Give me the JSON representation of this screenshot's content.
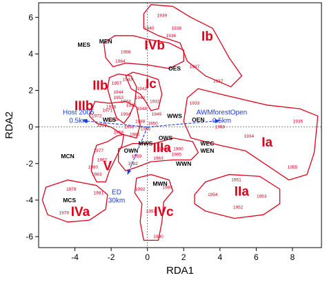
{
  "chart_data": {
    "type": "scatter",
    "title": "",
    "xlabel": "RDA1",
    "ylabel": "RDA2",
    "xlim": [
      -6,
      9.6
    ],
    "ylim": [
      -6.6,
      6.8
    ],
    "x_ticks": [
      -4,
      -2,
      0,
      2,
      4,
      6,
      8
    ],
    "y_ticks": [
      -6,
      -4,
      -2,
      0,
      2,
      4,
      6
    ],
    "grid": false,
    "zero_lines": true,
    "colors": {
      "year_labels": "#d6001c",
      "group_outlines": "#e0001a",
      "group_labels": "#e0001a",
      "site_labels": "#000000",
      "vectors": "#1a3adc",
      "axes": "#000000"
    },
    "site_points": [
      {
        "label": "MES",
        "x": -3.5,
        "y": 4.5
      },
      {
        "label": "MEN",
        "x": -2.3,
        "y": 4.7
      },
      {
        "label": "OES",
        "x": 1.5,
        "y": 3.2
      },
      {
        "label": "WWS",
        "x": 1.5,
        "y": 0.6
      },
      {
        "label": "WES",
        "x": -2.1,
        "y": 0.4
      },
      {
        "label": "OEN",
        "x": 2.8,
        "y": 0.4
      },
      {
        "label": "OWS",
        "x": 1.0,
        "y": -0.6
      },
      {
        "label": "WEC",
        "x": 3.3,
        "y": -0.9
      },
      {
        "label": "WEN",
        "x": 3.3,
        "y": -1.3
      },
      {
        "label": "WWN",
        "x": 2.0,
        "y": -2.0
      },
      {
        "label": "MCN",
        "x": -4.4,
        "y": -1.6
      },
      {
        "label": "OWN",
        "x": -0.9,
        "y": -1.3
      },
      {
        "label": "MWS",
        "x": -0.1,
        "y": -0.9
      },
      {
        "label": "MCS",
        "x": -4.3,
        "y": -4.0
      },
      {
        "label": "MWN",
        "x": 0.7,
        "y": -3.1
      }
    ],
    "year_points": [
      {
        "label": "1939",
        "x": 0.8,
        "y": 6.1
      },
      {
        "label": "1940",
        "x": 0.1,
        "y": 5.4
      },
      {
        "label": "1938",
        "x": 1.6,
        "y": 5.4
      },
      {
        "label": "1936",
        "x": 1.3,
        "y": 5.0
      },
      {
        "label": "1986",
        "x": -1.2,
        "y": 4.1
      },
      {
        "label": "1984",
        "x": -1.5,
        "y": 3.6
      },
      {
        "label": "1987",
        "x": 2.6,
        "y": 3.3
      },
      {
        "label": "1937",
        "x": 3.9,
        "y": 2.5
      },
      {
        "label": "1943",
        "x": -1.1,
        "y": 2.6
      },
      {
        "label": "1957",
        "x": -1.7,
        "y": 2.4
      },
      {
        "label": "1941",
        "x": -0.3,
        "y": 2.1
      },
      {
        "label": "1944",
        "x": -1.6,
        "y": 1.9
      },
      {
        "label": "1953",
        "x": -1.6,
        "y": 1.6
      },
      {
        "label": "1942",
        "x": -0.4,
        "y": 1.6
      },
      {
        "label": "1932",
        "x": 0.4,
        "y": 1.4
      },
      {
        "label": "1974",
        "x": -1.2,
        "y": 1.4
      },
      {
        "label": "1976",
        "x": -2.0,
        "y": 1.1
      },
      {
        "label": "1930",
        "x": -0.9,
        "y": 1.2
      },
      {
        "label": "1933",
        "x": 2.6,
        "y": 1.3
      },
      {
        "label": "1971",
        "x": -2.2,
        "y": 0.9
      },
      {
        "label": "1948",
        "x": -0.3,
        "y": 1.0
      },
      {
        "label": "1972",
        "x": -2.8,
        "y": 0.6
      },
      {
        "label": "1949",
        "x": 0.5,
        "y": 0.7
      },
      {
        "label": "1994",
        "x": -1.2,
        "y": 0.7
      },
      {
        "label": "1970",
        "x": -1.9,
        "y": 0.4
      },
      {
        "label": "1950",
        "x": 0.3,
        "y": 0.2
      },
      {
        "label": "1979",
        "x": -2.5,
        "y": 0.1
      },
      {
        "label": "1988",
        "x": -0.4,
        "y": 0.3
      },
      {
        "label": "1999",
        "x": -1.0,
        "y": 0.0
      },
      {
        "label": "1946",
        "x": -0.1,
        "y": -0.1
      },
      {
        "label": "1958",
        "x": -1.6,
        "y": -0.3
      },
      {
        "label": "1985",
        "x": -0.7,
        "y": -0.4
      },
      {
        "label": "1935",
        "x": 8.3,
        "y": 0.3
      },
      {
        "label": "1968",
        "x": 4.0,
        "y": 0.0
      },
      {
        "label": "1934",
        "x": 5.6,
        "y": -0.5
      },
      {
        "label": "1955",
        "x": 8.0,
        "y": -2.2
      },
      {
        "label": "1977",
        "x": -2.7,
        "y": -1.3
      },
      {
        "label": "1964",
        "x": 0.9,
        "y": -1.2
      },
      {
        "label": "1960",
        "x": 1.7,
        "y": -1.2
      },
      {
        "label": "1965",
        "x": 1.6,
        "y": -1.5
      },
      {
        "label": "1959",
        "x": -0.6,
        "y": -1.6
      },
      {
        "label": "1963",
        "x": 0.6,
        "y": -1.7
      },
      {
        "label": "1962",
        "x": -2.5,
        "y": -1.8
      },
      {
        "label": "1982",
        "x": -0.8,
        "y": -2.0
      },
      {
        "label": "1980",
        "x": -3.0,
        "y": -2.2
      },
      {
        "label": "1983",
        "x": -2.8,
        "y": -2.6
      },
      {
        "label": "1978",
        "x": -4.2,
        "y": -3.4
      },
      {
        "label": "1981",
        "x": -2.7,
        "y": -3.6
      },
      {
        "label": "1979",
        "x": -4.6,
        "y": -4.7
      },
      {
        "label": "1992",
        "x": -0.4,
        "y": -3.4
      },
      {
        "label": "1989",
        "x": 1.1,
        "y": -3.3
      },
      {
        "label": "1951",
        "x": 4.9,
        "y": -2.9
      },
      {
        "label": "1954",
        "x": 3.6,
        "y": -3.7
      },
      {
        "label": "1953",
        "x": 6.3,
        "y": -3.8
      },
      {
        "label": "1952",
        "x": 5.0,
        "y": -4.4
      },
      {
        "label": "1991",
        "x": 0.2,
        "y": -4.6
      },
      {
        "label": "1990",
        "x": 0.6,
        "y": -6.0
      }
    ],
    "group_labels": [
      {
        "label": "Ib",
        "x": 3.3,
        "y": 5.0
      },
      {
        "label": "IVb",
        "x": 0.4,
        "y": 4.5
      },
      {
        "label": "Ic",
        "x": 0.2,
        "y": 2.4
      },
      {
        "label": "IIb",
        "x": -2.6,
        "y": 2.3
      },
      {
        "label": "IIIb",
        "x": -3.5,
        "y": 1.2
      },
      {
        "label": "Ia",
        "x": 6.6,
        "y": -0.8
      },
      {
        "label": "IIIa",
        "x": 0.8,
        "y": -1.1
      },
      {
        "label": "V",
        "x": -2.2,
        "y": -2.1
      },
      {
        "label": "IVa",
        "x": -3.7,
        "y": -4.6
      },
      {
        "label": "IVc",
        "x": 0.9,
        "y": -4.6
      },
      {
        "label": "IIa",
        "x": 5.2,
        "y": -3.5
      }
    ],
    "group_outlines": [
      [
        [
          -0.2,
          6.2
        ],
        [
          0.2,
          6.7
        ],
        [
          1.4,
          6.6
        ],
        [
          2.4,
          6.0
        ],
        [
          3.6,
          5.4
        ],
        [
          4.5,
          3.8
        ],
        [
          5.2,
          2.8
        ],
        [
          4.6,
          2.2
        ],
        [
          3.2,
          2.8
        ],
        [
          2.2,
          3.6
        ],
        [
          1.8,
          4.6
        ],
        [
          0.6,
          5.0
        ],
        [
          -0.2,
          5.4
        ]
      ],
      [
        [
          -2.4,
          4.6
        ],
        [
          -1.8,
          5.0
        ],
        [
          -0.8,
          5.0
        ],
        [
          0.0,
          4.8
        ],
        [
          1.2,
          4.6
        ],
        [
          2.0,
          4.2
        ],
        [
          2.0,
          3.6
        ],
        [
          1.2,
          3.2
        ],
        [
          0.0,
          3.4
        ],
        [
          -1.2,
          3.5
        ],
        [
          -1.9,
          3.3
        ],
        [
          -2.3,
          3.8
        ]
      ],
      [
        [
          -1.2,
          2.8
        ],
        [
          -0.8,
          3.0
        ],
        [
          0.0,
          2.8
        ],
        [
          0.6,
          2.6
        ],
        [
          0.8,
          1.8
        ],
        [
          0.6,
          1.0
        ],
        [
          0.2,
          0.9
        ],
        [
          -0.1,
          1.4
        ],
        [
          -0.4,
          1.8
        ],
        [
          -0.9,
          2.1
        ]
      ],
      [
        [
          -2.1,
          2.7
        ],
        [
          -1.6,
          2.9
        ],
        [
          -0.9,
          2.8
        ],
        [
          -0.6,
          2.2
        ],
        [
          -0.7,
          1.3
        ],
        [
          -1.0,
          0.6
        ],
        [
          -1.3,
          0.2
        ],
        [
          -1.7,
          0.5
        ],
        [
          -2.0,
          1.4
        ],
        [
          -2.2,
          2.1
        ]
      ],
      [
        [
          -2.9,
          1.4
        ],
        [
          -2.1,
          1.3
        ],
        [
          -1.2,
          1.4
        ],
        [
          -0.6,
          1.1
        ],
        [
          -0.4,
          0.1
        ],
        [
          -0.6,
          -0.6
        ],
        [
          -1.4,
          -0.4
        ],
        [
          -2.0,
          0.0
        ],
        [
          -2.8,
          0.2
        ],
        [
          -3.2,
          0.6
        ]
      ],
      [
        [
          2.2,
          1.6
        ],
        [
          2.8,
          2.1
        ],
        [
          4.0,
          1.8
        ],
        [
          6.6,
          1.2
        ],
        [
          8.4,
          1.0
        ],
        [
          9.4,
          0.6
        ],
        [
          9.2,
          -1.4
        ],
        [
          8.8,
          -2.6
        ],
        [
          7.8,
          -2.9
        ],
        [
          6.6,
          -2.1
        ],
        [
          5.4,
          -1.3
        ],
        [
          4.0,
          -1.0
        ],
        [
          2.4,
          -0.6
        ],
        [
          2.0,
          0.3
        ]
      ],
      [
        [
          -1.6,
          -1.2
        ],
        [
          -0.8,
          -0.9
        ],
        [
          0.4,
          -0.9
        ],
        [
          1.4,
          -0.6
        ],
        [
          2.5,
          -0.8
        ],
        [
          2.8,
          -1.4
        ],
        [
          2.4,
          -1.8
        ],
        [
          1.4,
          -1.8
        ],
        [
          0.2,
          -1.9
        ],
        [
          -0.6,
          -2.2
        ],
        [
          -1.2,
          -2.4
        ],
        [
          -1.6,
          -1.9
        ]
      ],
      [
        [
          -2.2,
          -0.8
        ],
        [
          -2.8,
          -1.0
        ],
        [
          -3.0,
          -1.6
        ],
        [
          -3.1,
          -2.4
        ],
        [
          -2.8,
          -3.0
        ],
        [
          -2.3,
          -3.0
        ],
        [
          -2.1,
          -2.4
        ],
        [
          -1.7,
          -1.6
        ],
        [
          -1.4,
          -1.0
        ],
        [
          -1.3,
          -0.4
        ],
        [
          -1.7,
          -0.5
        ]
      ],
      [
        [
          -5.6,
          -3.3
        ],
        [
          -4.4,
          -2.9
        ],
        [
          -2.8,
          -3.2
        ],
        [
          -2.2,
          -3.7
        ],
        [
          -2.3,
          -4.5
        ],
        [
          -3.2,
          -5.1
        ],
        [
          -4.4,
          -5.2
        ],
        [
          -5.5,
          -4.8
        ],
        [
          -5.8,
          -4.0
        ]
      ],
      [
        [
          -0.6,
          -2.8
        ],
        [
          0.2,
          -2.6
        ],
        [
          1.2,
          -2.9
        ],
        [
          1.4,
          -3.5
        ],
        [
          0.9,
          -4.1
        ],
        [
          0.8,
          -5.2
        ],
        [
          0.6,
          -6.2
        ],
        [
          -0.2,
          -6.2
        ],
        [
          -0.4,
          -5.2
        ],
        [
          -0.3,
          -4.2
        ],
        [
          -0.7,
          -3.6
        ]
      ],
      [
        [
          2.6,
          -3.7
        ],
        [
          3.2,
          -3.0
        ],
        [
          4.5,
          -2.6
        ],
        [
          6.2,
          -2.7
        ],
        [
          7.3,
          -3.4
        ],
        [
          7.3,
          -4.2
        ],
        [
          6.4,
          -4.8
        ],
        [
          4.8,
          -5.0
        ],
        [
          3.2,
          -4.6
        ],
        [
          2.6,
          -4.2
        ]
      ]
    ],
    "vectors": [
      {
        "label": "Host 2005",
        "sublabel": "0.5km",
        "x": -3.6,
        "y": 0.35
      },
      {
        "label": "AWMforestOpen",
        "sublabel": "0.5km",
        "x": 4.0,
        "y": 0.35
      },
      {
        "label": "ED",
        "sublabel": "30km",
        "x": -1.1,
        "y": -2.6
      }
    ],
    "vector_label_positions": {
      "Host 2005": {
        "x": -3.8,
        "y": 0.45
      },
      "AWMforestOpen": {
        "x": 4.1,
        "y": 0.45
      },
      "ED": {
        "x": -1.7,
        "y": -3.9
      }
    }
  }
}
